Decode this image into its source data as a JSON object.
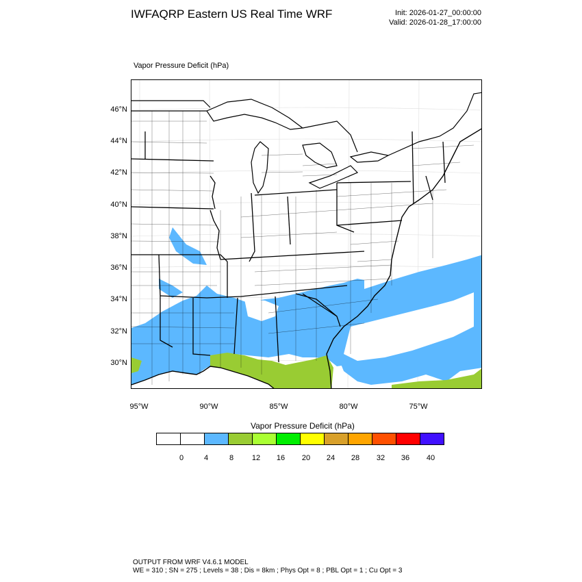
{
  "header": {
    "title": "IWFAQRP Eastern US Real Time WRF",
    "init": "Init: 2026-01-27_00:00:00",
    "valid": "Valid: 2026-01-28_17:00:00"
  },
  "map": {
    "subtitle": "Vapor Pressure Deficit   (hPa)",
    "lat_labels": [
      "46°N",
      "44°N",
      "42°N",
      "40°N",
      "38°N",
      "36°N",
      "34°N",
      "32°N",
      "30°N"
    ],
    "lon_labels": [
      "95°W",
      "90°W",
      "85°W",
      "80°W",
      "75°W"
    ],
    "fill_colors": {
      "band_4_8": "#5cb8ff",
      "band_8_12": "#99cc33",
      "land": "#ffffff",
      "water": "#ffffff"
    }
  },
  "legend": {
    "title": "Vapor Pressure Deficit  (hPa)",
    "colors": [
      "#ffffff",
      "#ffffff",
      "#5cb8ff",
      "#99cc33",
      "#aaff33",
      "#00ee00",
      "#ffff00",
      "#d8a02a",
      "#ffa500",
      "#ff5000",
      "#ff0000",
      "#4010ff"
    ],
    "ticks": [
      "0",
      "4",
      "8",
      "12",
      "16",
      "20",
      "24",
      "28",
      "32",
      "36",
      "40"
    ]
  },
  "footer": {
    "line1": "OUTPUT FROM WRF V4.6.1 MODEL",
    "line2": "WE = 310 ; SN = 275 ; Levels = 38 ; Dis = 8km ; Phys Opt = 8 ; PBL Opt = 1 ; Cu Opt = 3"
  }
}
